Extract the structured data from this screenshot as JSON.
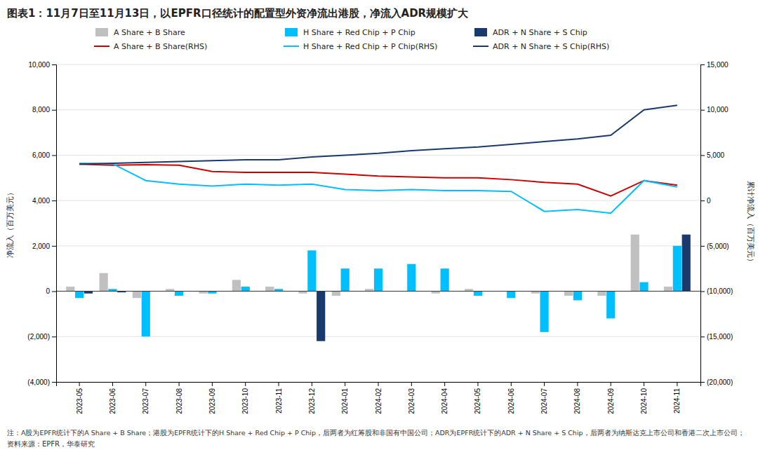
{
  "chart_data": {
    "type": "bar",
    "title": "图表1：11月7日至11月13日，以EPFR口径统计的配置型外资净流出港股，净流入ADR规模扩大",
    "ylabel": "净流入（百万美元）",
    "y2label": "累计净流入（百万美元）",
    "note": "注：A股为EPFR统计下的A Share + B Share；港股为EPFR统计下的H Share + Red Chip + P Chip，后两者为红筹股和非国有中国公司；ADR为EPFR统计下的ADR + N Share + S Chip，后两者为纳斯达克上市公司和香港二次上市公司；",
    "source": "资料来源：EPFR，华泰研究",
    "categories": [
      "2023-05",
      "2023-06",
      "2023-07",
      "2023-08",
      "2023-09",
      "2023-10",
      "2023-11",
      "2023-12",
      "2024-01",
      "2024-02",
      "2024-03",
      "2024-04",
      "2024-05",
      "2024-06",
      "2024-07",
      "2024-08",
      "2024-09",
      "2024-10",
      "2024-11"
    ],
    "series": [
      {
        "name": "A Share + B Share",
        "type": "bar",
        "color": "#c0c0c0",
        "values": [
          200,
          800,
          -300,
          100,
          -100,
          500,
          200,
          -100,
          -200,
          100,
          0,
          -100,
          100,
          0,
          -100,
          -200,
          -200,
          2500,
          200
        ]
      },
      {
        "name": "H Share + Red Chip + P Chip",
        "type": "bar",
        "color": "#00bfff",
        "values": [
          -300,
          100,
          -2000,
          -200,
          -100,
          200,
          100,
          1800,
          1000,
          1000,
          1200,
          1000,
          -200,
          -300,
          -1800,
          -400,
          -1200,
          400,
          2000
        ]
      },
      {
        "name": "ADR + N Share + S Chip",
        "type": "bar",
        "color": "#1a3a6b",
        "values": [
          -100,
          -50,
          0,
          0,
          0,
          0,
          0,
          -2200,
          0,
          0,
          0,
          0,
          0,
          0,
          0,
          0,
          0,
          0,
          2500
        ]
      },
      {
        "name": "A Share + B Share(RHS)",
        "type": "line",
        "axis": "y2",
        "color": "#cc0000",
        "values": [
          4000,
          3900,
          3950,
          3900,
          3200,
          3100,
          3100,
          3100,
          2900,
          2700,
          2600,
          2500,
          2500,
          2300,
          2000,
          1800,
          500,
          2200,
          1700
        ]
      },
      {
        "name": "H Share + Red Chip + P Chip(RHS)",
        "type": "line",
        "axis": "y2",
        "color": "#00bfff",
        "values": [
          4100,
          4050,
          2200,
          1800,
          1600,
          1800,
          1700,
          1800,
          1200,
          1100,
          1200,
          1100,
          1100,
          1000,
          -1200,
          -1000,
          -1400,
          2200,
          1500
        ]
      },
      {
        "name": "ADR + N Share + S Chip(RHS)",
        "type": "line",
        "axis": "y2",
        "color": "#1a3a6b",
        "values": [
          4000,
          4100,
          4200,
          4300,
          4400,
          4500,
          4500,
          4800,
          5000,
          5200,
          5500,
          5700,
          5900,
          6200,
          6500,
          6800,
          7200,
          10000,
          10500
        ]
      }
    ],
    "ylim": [
      -4000,
      10000
    ],
    "yticks": [
      {
        "value": -4000,
        "label": "(4,000)"
      },
      {
        "value": -2000,
        "label": "(2,000)"
      },
      0,
      {
        "value": 2000,
        "label": "2,000"
      },
      {
        "value": 4000,
        "label": "4,000"
      },
      {
        "value": 6000,
        "label": "6,000"
      },
      {
        "value": 8000,
        "label": "8,000"
      },
      {
        "value": 10000,
        "label": "10,000"
      }
    ],
    "y2lim": [
      -20000,
      15000
    ],
    "y2ticks": [
      {
        "value": -20000,
        "label": "(20,000)"
      },
      {
        "value": -15000,
        "label": "(15,000)"
      },
      {
        "value": -10000,
        "label": "(10,000)"
      },
      {
        "value": -5000,
        "label": "(5,000)"
      },
      0,
      {
        "value": 5000,
        "label": "5,000"
      },
      {
        "value": 10000,
        "label": "10,000"
      },
      {
        "value": 15000,
        "label": "15,000"
      }
    ],
    "grid": true,
    "legend": "top"
  }
}
